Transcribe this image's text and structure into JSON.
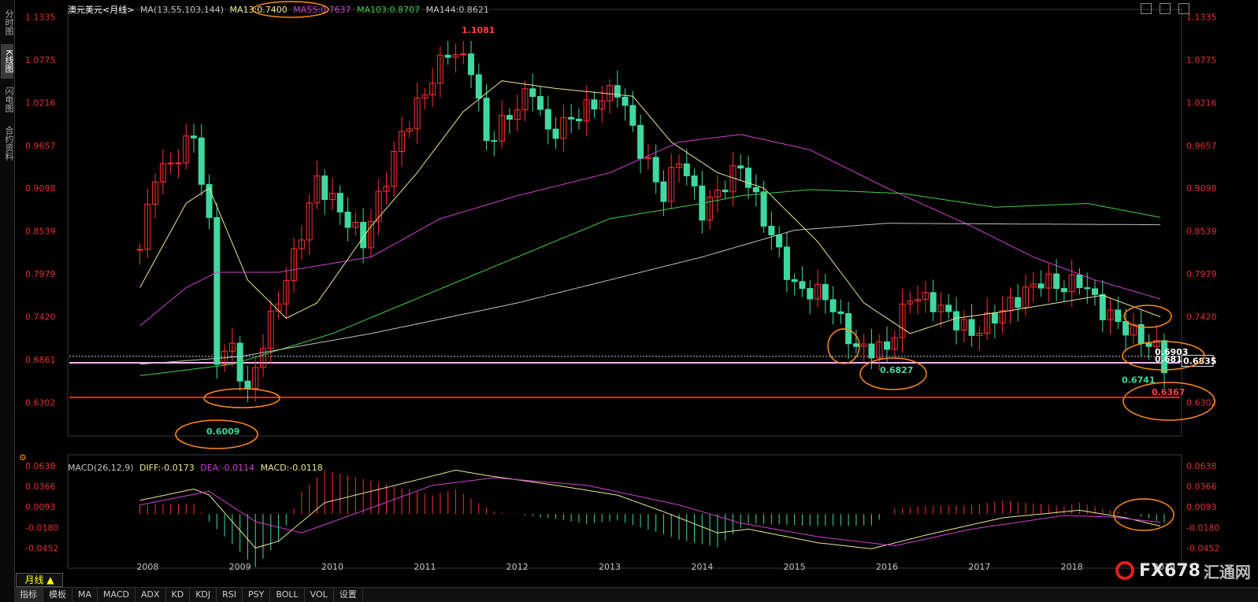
{
  "title": "澳元美元<月线>",
  "sidebar": [
    "分时图",
    "K线图",
    "闪电图",
    "合约资料"
  ],
  "ma_legend": [
    {
      "text": "MA(13,55,103,144)",
      "color": "#c0c0c0"
    },
    {
      "text": "MA13:0.7400",
      "color": "#e8e890"
    },
    {
      "text": "MA55:0.7637",
      "color": "#d040d0"
    },
    {
      "text": "MA103:0.8707",
      "color": "#40d040"
    },
    {
      "text": "MA144:0.8621",
      "color": "#c0c0c0"
    }
  ],
  "macd_legend": [
    {
      "text": "MACD(26,12,9)",
      "color": "#c0c0c0"
    },
    {
      "text": "DIFF:-0.0173",
      "color": "#e8e890"
    },
    {
      "text": "DEA:-0.0114",
      "color": "#d040d0"
    },
    {
      "text": "MACD:-0.0118",
      "color": "#e8e890"
    }
  ],
  "chart_data": [
    {
      "type": "candlestick",
      "title": "澳元美元<月线>",
      "y_ticks": [
        "1.1335",
        "1.0775",
        "1.0216",
        "0.9657",
        "0.9098",
        "0.8539",
        "0.7979",
        "0.7420",
        "0.6861",
        "0.6302"
      ],
      "ylim": [
        0.5925,
        1.135
      ],
      "x_labels": [
        "2008",
        "2009",
        "2010",
        "2011",
        "2012",
        "2013",
        "2014",
        "2015",
        "2016",
        "2017",
        "2018",
        "2019"
      ],
      "annotations": [
        "1.1081",
        "0.6009",
        "0.6827",
        "0.6741",
        "0.6903",
        "0.6819",
        "0.6835",
        "0.6367"
      ],
      "horizontal_levels": [
        0.6903,
        0.6819,
        0.6367
      ],
      "anchor_points": [
        {
          "date": "2007-12",
          "value": 0.83
        },
        {
          "date": "2008-02",
          "value": 0.93
        },
        {
          "date": "2008-04",
          "value": 0.94
        },
        {
          "date": "2008-07",
          "value": 0.98
        },
        {
          "date": "2008-09",
          "value": 0.86
        },
        {
          "date": "2008-10",
          "value": 0.69
        },
        {
          "date": "2008-12",
          "value": 0.7
        },
        {
          "date": "2009-02",
          "value": 0.64
        },
        {
          "date": "2009-04",
          "value": 0.71
        },
        {
          "date": "2009-08",
          "value": 0.82
        },
        {
          "date": "2009-11",
          "value": 0.92
        },
        {
          "date": "2010-05",
          "value": 0.84
        },
        {
          "date": "2010-10",
          "value": 0.98
        },
        {
          "date": "2011-04",
          "value": 1.09
        },
        {
          "date": "2011-07",
          "value": 1.07
        },
        {
          "date": "2011-09",
          "value": 0.97
        },
        {
          "date": "2012-03",
          "value": 1.04
        },
        {
          "date": "2012-05",
          "value": 0.98
        },
        {
          "date": "2013-02",
          "value": 1.04
        },
        {
          "date": "2013-05",
          "value": 0.96
        },
        {
          "date": "2013-08",
          "value": 0.9
        },
        {
          "date": "2013-10",
          "value": 0.95
        },
        {
          "date": "2014-01",
          "value": 0.88
        },
        {
          "date": "2014-06",
          "value": 0.94
        },
        {
          "date": "2014-09",
          "value": 0.87
        },
        {
          "date": "2015-01",
          "value": 0.78
        },
        {
          "date": "2015-05",
          "value": 0.77
        },
        {
          "date": "2015-09",
          "value": 0.7
        },
        {
          "date": "2016-01",
          "value": 0.7
        },
        {
          "date": "2016-04",
          "value": 0.77
        },
        {
          "date": "2016-07",
          "value": 0.76
        },
        {
          "date": "2016-12",
          "value": 0.72
        },
        {
          "date": "2017-04",
          "value": 0.75
        },
        {
          "date": "2017-09",
          "value": 0.79
        },
        {
          "date": "2017-12",
          "value": 0.78
        },
        {
          "date": "2018-02",
          "value": 0.79
        },
        {
          "date": "2018-05",
          "value": 0.75
        },
        {
          "date": "2018-09",
          "value": 0.72
        },
        {
          "date": "2018-12",
          "value": 0.7
        },
        {
          "date": "2019-01",
          "value": 0.68
        }
      ],
      "series": [
        {
          "name": "MA13",
          "color": "#e8e890",
          "points": [
            {
              "date": "2007-12",
              "value": 0.78
            },
            {
              "date": "2008-06",
              "value": 0.89
            },
            {
              "date": "2008-09",
              "value": 0.91
            },
            {
              "date": "2009-02",
              "value": 0.79
            },
            {
              "date": "2009-07",
              "value": 0.74
            },
            {
              "date": "2009-11",
              "value": 0.76
            },
            {
              "date": "2010-06",
              "value": 0.86
            },
            {
              "date": "2010-12",
              "value": 0.93
            },
            {
              "date": "2011-06",
              "value": 1.01
            },
            {
              "date": "2011-11",
              "value": 1.05
            },
            {
              "date": "2012-06",
              "value": 1.04
            },
            {
              "date": "2013-04",
              "value": 1.03
            },
            {
              "date": "2013-09",
              "value": 0.97
            },
            {
              "date": "2014-03",
              "value": 0.93
            },
            {
              "date": "2014-09",
              "value": 0.91
            },
            {
              "date": "2015-04",
              "value": 0.84
            },
            {
              "date": "2015-10",
              "value": 0.76
            },
            {
              "date": "2016-04",
              "value": 0.72
            },
            {
              "date": "2016-10",
              "value": 0.74
            },
            {
              "date": "2017-05",
              "value": 0.75
            },
            {
              "date": "2017-11",
              "value": 0.76
            },
            {
              "date": "2018-05",
              "value": 0.77
            },
            {
              "date": "2019-01",
              "value": 0.74
            }
          ]
        },
        {
          "name": "MA55",
          "color": "#d040d0",
          "points": [
            {
              "date": "2007-12",
              "value": 0.73
            },
            {
              "date": "2008-06",
              "value": 0.78
            },
            {
              "date": "2008-10",
              "value": 0.8
            },
            {
              "date": "2009-06",
              "value": 0.8
            },
            {
              "date": "2010-06",
              "value": 0.82
            },
            {
              "date": "2011-03",
              "value": 0.87
            },
            {
              "date": "2012-01",
              "value": 0.9
            },
            {
              "date": "2013-01",
              "value": 0.93
            },
            {
              "date": "2013-10",
              "value": 0.97
            },
            {
              "date": "2014-06",
              "value": 0.98
            },
            {
              "date": "2015-03",
              "value": 0.96
            },
            {
              "date": "2016-01",
              "value": 0.91
            },
            {
              "date": "2016-12",
              "value": 0.86
            },
            {
              "date": "2017-08",
              "value": 0.82
            },
            {
              "date": "2018-04",
              "value": 0.79
            },
            {
              "date": "2019-01",
              "value": 0.7637
            }
          ]
        },
        {
          "name": "MA103",
          "color": "#40d040",
          "points": [
            {
              "date": "2007-12",
              "value": 0.665
            },
            {
              "date": "2008-12",
              "value": 0.68
            },
            {
              "date": "2010-01",
              "value": 0.72
            },
            {
              "date": "2011-01",
              "value": 0.77
            },
            {
              "date": "2012-01",
              "value": 0.82
            },
            {
              "date": "2013-01",
              "value": 0.87
            },
            {
              "date": "2014-01",
              "value": 0.89
            },
            {
              "date": "2014-06",
              "value": 0.9
            },
            {
              "date": "2015-03",
              "value": 0.908
            },
            {
              "date": "2016-03",
              "value": 0.903
            },
            {
              "date": "2017-03",
              "value": 0.885
            },
            {
              "date": "2018-03",
              "value": 0.89
            },
            {
              "date": "2019-01",
              "value": 0.8707
            }
          ]
        },
        {
          "name": "MA144",
          "color": "#c0c0c0",
          "points": [
            {
              "date": "2007-12",
              "value": 0.68
            },
            {
              "date": "2009-01",
              "value": 0.69
            },
            {
              "date": "2010-06",
              "value": 0.72
            },
            {
              "date": "2012-01",
              "value": 0.76
            },
            {
              "date": "2013-01",
              "value": 0.79
            },
            {
              "date": "2014-01",
              "value": 0.82
            },
            {
              "date": "2015-01",
              "value": 0.855
            },
            {
              "date": "2016-01",
              "value": 0.864
            },
            {
              "date": "2019-01",
              "value": 0.8621
            }
          ]
        }
      ]
    },
    {
      "type": "macd",
      "title": "MACD(26,12,9)",
      "y_ticks": [
        "0.0638",
        "0.0366",
        "0.0093",
        "-0.0180",
        "-0.0452"
      ],
      "ylim": [
        -0.055,
        0.072
      ],
      "series": [
        {
          "name": "DIFF",
          "color": "#e8e890",
          "points": [
            {
              "date": "2007-12",
              "value": 0.018
            },
            {
              "date": "2008-07",
              "value": 0.033
            },
            {
              "date": "2008-09",
              "value": 0.025
            },
            {
              "date": "2009-03",
              "value": -0.045
            },
            {
              "date": "2009-06",
              "value": -0.036
            },
            {
              "date": "2009-12",
              "value": 0.015
            },
            {
              "date": "2010-08",
              "value": 0.035
            },
            {
              "date": "2011-05",
              "value": 0.058
            },
            {
              "date": "2011-09",
              "value": 0.051
            },
            {
              "date": "2012-06",
              "value": 0.038
            },
            {
              "date": "2013-02",
              "value": 0.025
            },
            {
              "date": "2013-08",
              "value": 0.003
            },
            {
              "date": "2014-03",
              "value": -0.025
            },
            {
              "date": "2014-07",
              "value": -0.02
            },
            {
              "date": "2015-04",
              "value": -0.038
            },
            {
              "date": "2015-11",
              "value": -0.046
            },
            {
              "date": "2016-06",
              "value": -0.028
            },
            {
              "date": "2017-04",
              "value": -0.005
            },
            {
              "date": "2018-02",
              "value": 0.005
            },
            {
              "date": "2018-08",
              "value": -0.005
            },
            {
              "date": "2019-01",
              "value": -0.0173
            }
          ]
        },
        {
          "name": "DEA",
          "color": "#d040d0",
          "points": [
            {
              "date": "2007-12",
              "value": 0.012
            },
            {
              "date": "2008-09",
              "value": 0.03
            },
            {
              "date": "2009-03",
              "value": -0.01
            },
            {
              "date": "2009-09",
              "value": -0.025
            },
            {
              "date": "2010-06",
              "value": 0.008
            },
            {
              "date": "2011-02",
              "value": 0.038
            },
            {
              "date": "2011-10",
              "value": 0.048
            },
            {
              "date": "2012-10",
              "value": 0.038
            },
            {
              "date": "2013-10",
              "value": 0.012
            },
            {
              "date": "2014-06",
              "value": -0.012
            },
            {
              "date": "2015-04",
              "value": -0.03
            },
            {
              "date": "2016-02",
              "value": -0.042
            },
            {
              "date": "2016-12",
              "value": -0.02
            },
            {
              "date": "2017-12",
              "value": -0.002
            },
            {
              "date": "2018-06",
              "value": -0.004
            },
            {
              "date": "2019-01",
              "value": -0.0114
            }
          ]
        }
      ]
    }
  ]
}
